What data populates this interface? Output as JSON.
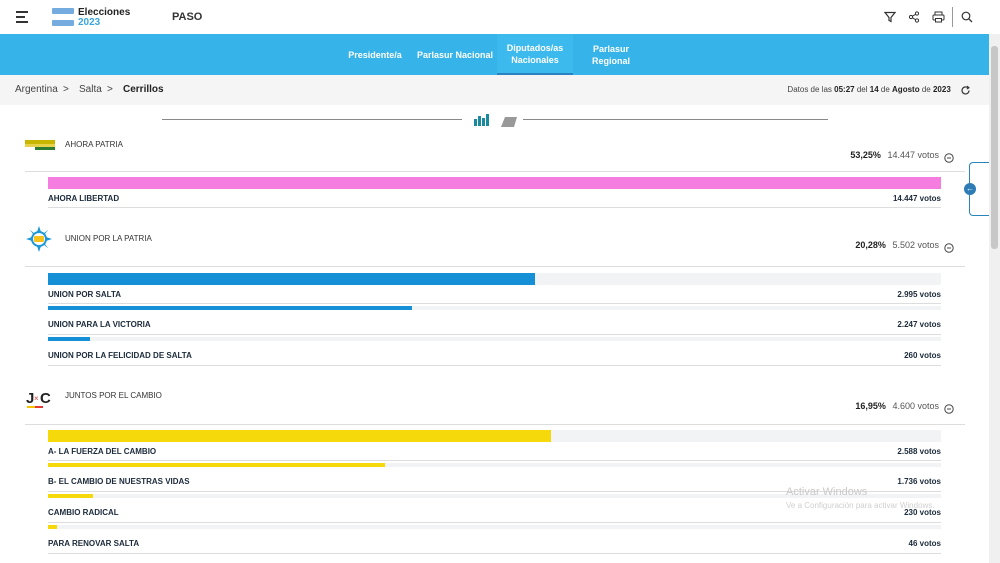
{
  "header": {
    "brand_line1": "Elecciones",
    "brand_line2": "2023",
    "election_type": "PASO",
    "icons": [
      "filter-icon",
      "share-icon",
      "print-icon",
      "search-icon"
    ]
  },
  "nav": {
    "tabs": [
      {
        "label": "Presidente/a",
        "active": false
      },
      {
        "label": "Parlasur Nacional",
        "active": false
      },
      {
        "label": "Diputados/as Nacionales",
        "active": true
      },
      {
        "label": "Parlasur Regional",
        "active": false
      }
    ]
  },
  "breadcrumb": {
    "items": [
      "Argentina",
      "Salta",
      "Cerrillos"
    ],
    "separator": ">"
  },
  "updated": {
    "prefix": "Datos de las",
    "time": "05:27",
    "del": "del",
    "day": "14",
    "de1": "de",
    "month": "Agosto",
    "de2": "de",
    "year": "2023"
  },
  "parties": [
    {
      "name": "AHORA PATRIA",
      "percent": "53,25%",
      "votes": "14.447 votos",
      "color": "#f57de0",
      "lists": [
        {
          "name": "AHORA LIBERTAD",
          "votes": "14.447 votos",
          "share": 1.0
        }
      ]
    },
    {
      "name": "UNION POR LA PATRIA",
      "percent": "20,28%",
      "votes": "5.502 votos",
      "color": "#1590d6",
      "lists": [
        {
          "name": "UNION POR SALTA",
          "votes": "2.995 votos",
          "share": 0.545
        },
        {
          "name": "UNION PARA LA VICTORIA",
          "votes": "2.247 votos",
          "share": 0.408
        },
        {
          "name": "UNION POR LA FELICIDAD DE SALTA",
          "votes": "260 votos",
          "share": 0.047
        }
      ]
    },
    {
      "name": "JUNTOS POR EL CAMBIO",
      "percent": "16,95%",
      "votes": "4.600 votos",
      "color": "#f5d90a",
      "lists": [
        {
          "name": "A- LA FUERZA DEL CAMBIO",
          "votes": "2.588 votos",
          "share": 0.563
        },
        {
          "name": "B- EL CAMBIO DE NUESTRAS VIDAS",
          "votes": "1.736 votos",
          "share": 0.377
        },
        {
          "name": "CAMBIO RADICAL",
          "votes": "230 votos",
          "share": 0.05
        },
        {
          "name": "PARA RENOVAR SALTA",
          "votes": "46 votos",
          "share": 0.01
        }
      ]
    }
  ],
  "watermark": {
    "line1": "Activar Windows",
    "line2": "Ve a Configuración para activar Windows."
  }
}
